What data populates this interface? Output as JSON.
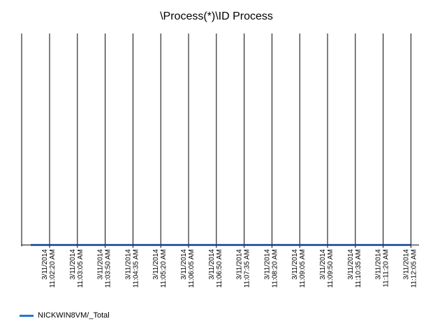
{
  "chart_data": {
    "type": "line",
    "title": "\\Process(*)\\ID Process",
    "xlabel": "",
    "ylabel": "",
    "ylim": [
      0,
      1
    ],
    "grid": "vertical",
    "legend_position": "bottom-left",
    "x": [
      "3/11/2014 11:02:20 AM",
      "3/11/2014 11:03:05 AM",
      "3/11/2014 11:03:50 AM",
      "3/11/2014 11:04:35 AM",
      "3/11/2014 11:05:20 AM",
      "3/11/2014 11:06:05 AM",
      "3/11/2014 11:06:50 AM",
      "3/11/2014 11:07:35 AM",
      "3/11/2014 11:08:20 AM",
      "3/11/2014 11:09:05 AM",
      "3/11/2014 11:09:50 AM",
      "3/11/2014 11:10:35 AM",
      "3/11/2014 11:11:20 AM",
      "3/11/2014 11:12:05 AM"
    ],
    "series": [
      {
        "name": "NICKWIN8VM/_Total",
        "color": "#1f77d4",
        "values": [
          0,
          0,
          0,
          0,
          0,
          0,
          0,
          0,
          0,
          0,
          0,
          0,
          0,
          0
        ]
      }
    ]
  }
}
